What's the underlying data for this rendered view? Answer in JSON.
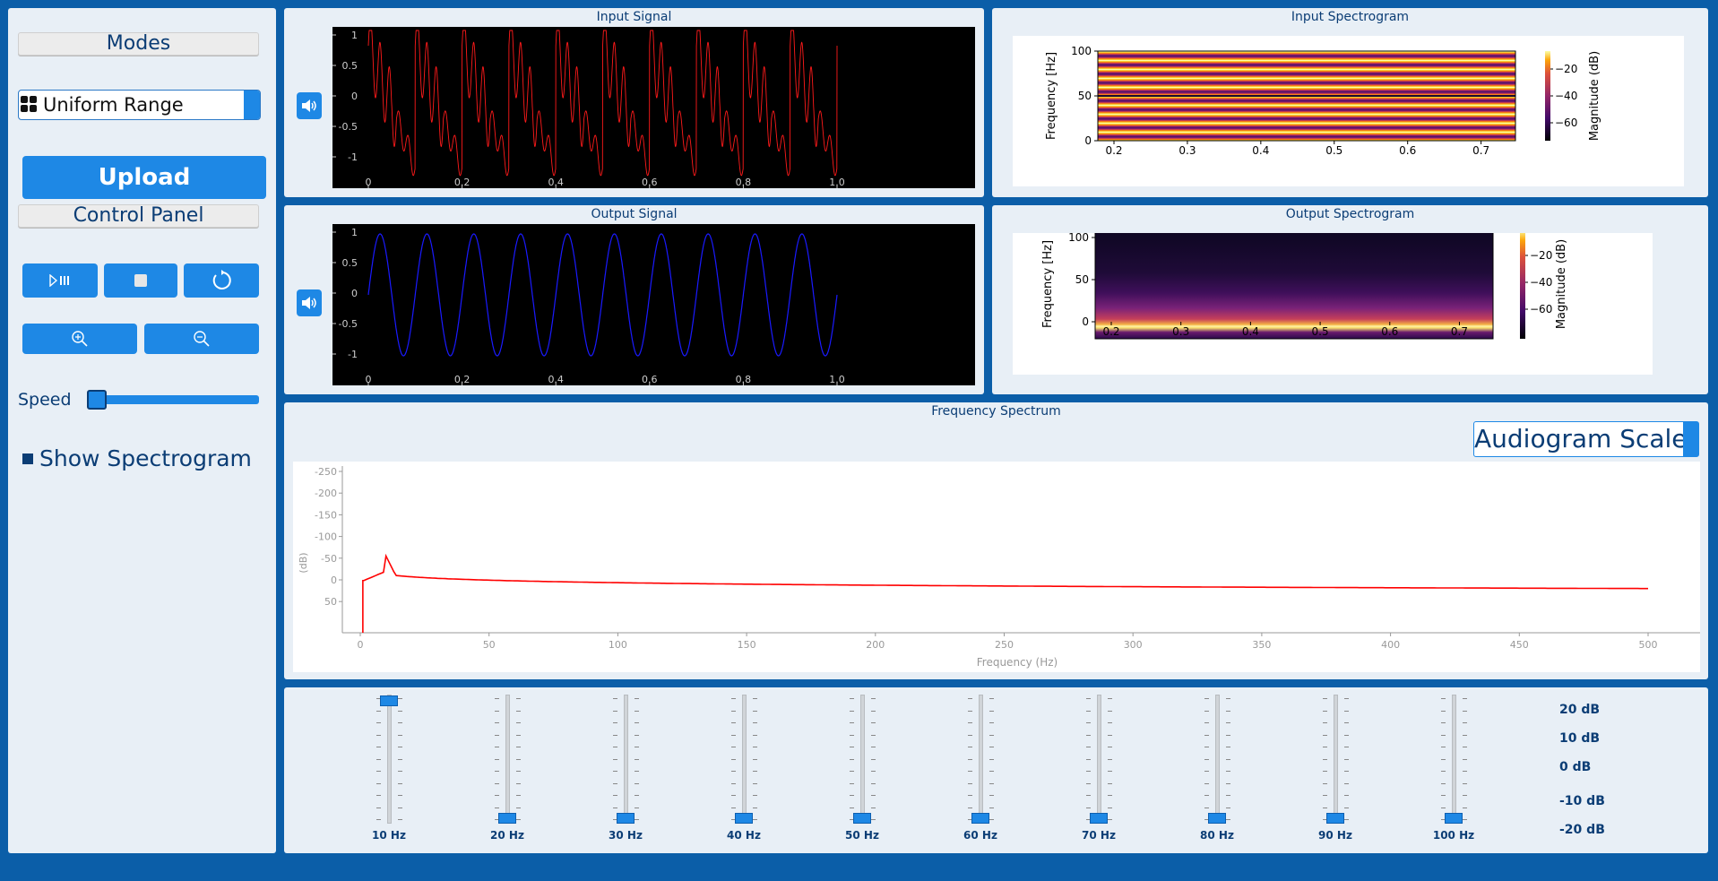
{
  "sidebar": {
    "modes_header": "Modes",
    "mode_selected": "Uniform Range",
    "upload_label": "Upload",
    "control_panel_header": "Control Panel",
    "speed_label": "Speed",
    "speed_value": 0,
    "show_spectrogram_label": "Show Spectrogram"
  },
  "input_signal": {
    "title": "Input Signal",
    "yticks": [
      "1",
      "0.5",
      "0",
      "-0.5",
      "-1"
    ],
    "xticks": [
      "0",
      "0.2",
      "0.4",
      "0.6",
      "0.8",
      "1.0"
    ]
  },
  "output_signal": {
    "title": "Output Signal",
    "yticks": [
      "1",
      "0.5",
      "0",
      "-0.5",
      "-1"
    ],
    "xticks": [
      "0",
      "0.2",
      "0.4",
      "0.6",
      "0.8",
      "1.0"
    ]
  },
  "input_spectrogram": {
    "title": "Input Spectrogram",
    "ylabel": "Frequency [Hz]",
    "yticks": [
      "100",
      "50",
      "0"
    ],
    "xticks": [
      "0.2",
      "0.3",
      "0.4",
      "0.5",
      "0.6",
      "0.7"
    ],
    "cbar_label": "Magnitude (dB)",
    "cbar_ticks": [
      "−20",
      "−40",
      "−60"
    ]
  },
  "output_spectrogram": {
    "title": "Output Spectrogram",
    "ylabel": "Frequency [Hz]",
    "yticks": [
      "100",
      "50",
      "0"
    ],
    "xticks": [
      "0.2",
      "0.3",
      "0.4",
      "0.5",
      "0.6",
      "0.7"
    ],
    "cbar_label": "Magnitude (dB)",
    "cbar_ticks": [
      "−20",
      "−40",
      "−60"
    ]
  },
  "frequency_spectrum": {
    "title": "Frequency Spectrum",
    "audiogram_button": "Audiogram Scale",
    "ylabel": "(dB)",
    "xlabel": "Frequency (Hz)",
    "yticks": [
      "-250",
      "-200",
      "-150",
      "-100",
      "-50",
      "0",
      "50"
    ],
    "xticks": [
      "0",
      "50",
      "100",
      "150",
      "200",
      "250",
      "300",
      "350",
      "400",
      "450",
      "500"
    ]
  },
  "equalizer": {
    "bands": [
      {
        "label": "10 Hz",
        "level": 1.0
      },
      {
        "label": "20 Hz",
        "level": 0.0
      },
      {
        "label": "30 Hz",
        "level": 0.0
      },
      {
        "label": "40 Hz",
        "level": 0.0
      },
      {
        "label": "50 Hz",
        "level": 0.0
      },
      {
        "label": "60 Hz",
        "level": 0.0
      },
      {
        "label": "70 Hz",
        "level": 0.0
      },
      {
        "label": "80 Hz",
        "level": 0.0
      },
      {
        "label": "90 Hz",
        "level": 0.0
      },
      {
        "label": "100 Hz",
        "level": 0.0
      }
    ],
    "db_labels": [
      "20 dB",
      "10 dB",
      "0 dB",
      "-10 dB",
      "-20 dB"
    ]
  },
  "colors": {
    "accent": "#1e88e5",
    "background": "#0b5ea8",
    "panel": "#e8eff6",
    "input_wave": "#ff1a1a",
    "output_wave": "#1a1aff"
  }
}
